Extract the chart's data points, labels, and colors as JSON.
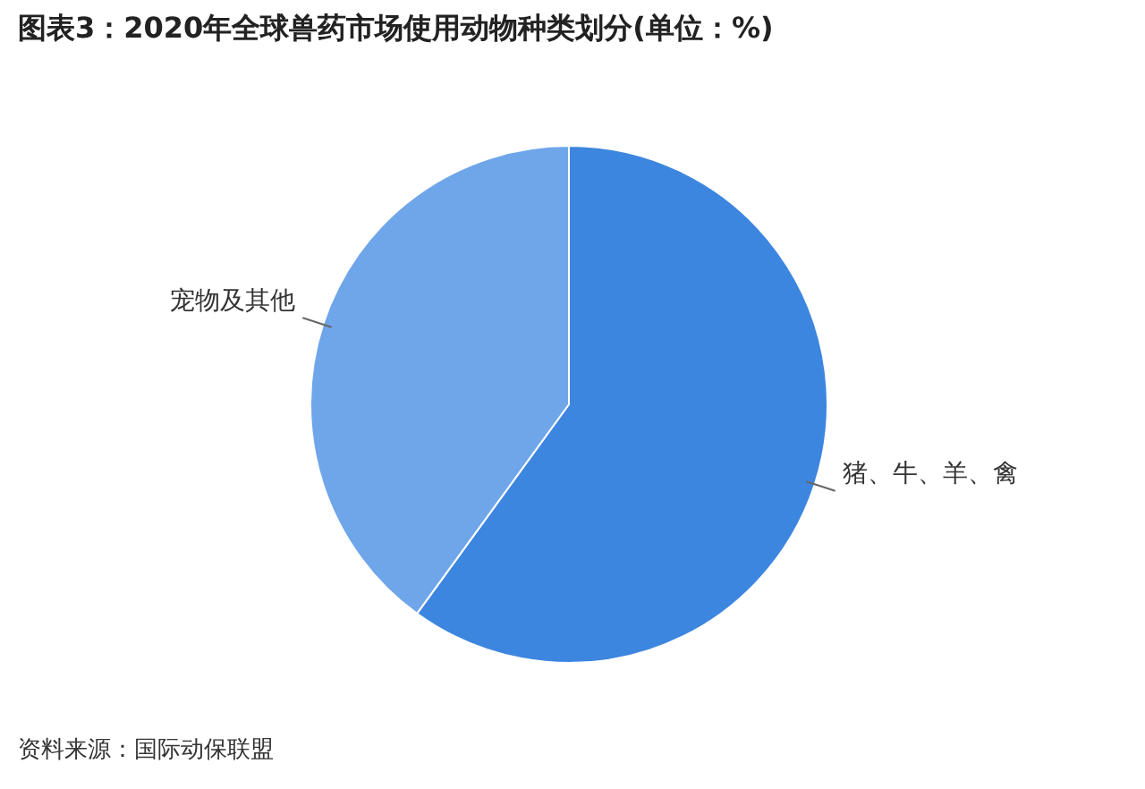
{
  "chart_data": {
    "type": "pie",
    "title": "图表3：2020年全球兽药市场使用动物种类划分(单位：%)",
    "categories": [
      "猪、牛、羊、禽",
      "宠物及其他"
    ],
    "values": [
      60,
      40
    ],
    "colors": [
      "#3d86e0",
      "#6fa6ea"
    ],
    "legend": false,
    "annotations": [
      "资料来源：国际动保联盟"
    ]
  }
}
